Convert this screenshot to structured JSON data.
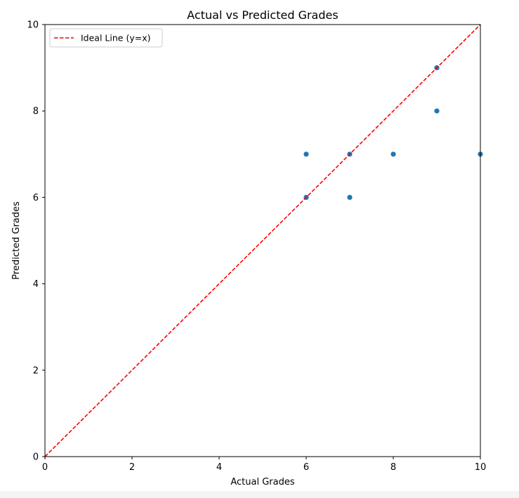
{
  "chart_data": {
    "type": "scatter",
    "title": "Actual vs Predicted Grades",
    "xlabel": "Actual Grades",
    "ylabel": "Predicted Grades",
    "xlim": [
      0,
      10
    ],
    "ylim": [
      0,
      10
    ],
    "xticks": [
      "0",
      "2",
      "4",
      "6",
      "8",
      "10"
    ],
    "yticks": [
      "0",
      "2",
      "4",
      "6",
      "8",
      "10"
    ],
    "grid": false,
    "legend_position": "top-left",
    "series": [
      {
        "kind": "points",
        "color": "#1f77b4",
        "points": [
          {
            "x": 6,
            "y": 7
          },
          {
            "x": 6,
            "y": 6
          },
          {
            "x": 7,
            "y": 7
          },
          {
            "x": 7,
            "y": 6
          },
          {
            "x": 8,
            "y": 7
          },
          {
            "x": 9,
            "y": 9
          },
          {
            "x": 9,
            "y": 8
          },
          {
            "x": 10,
            "y": 7
          }
        ]
      },
      {
        "name": "Ideal Line (y=x)",
        "kind": "line",
        "style": "dashed",
        "color": "#ff0000",
        "points": [
          {
            "x": 0,
            "y": 0
          },
          {
            "x": 10,
            "y": 10
          }
        ]
      }
    ]
  }
}
